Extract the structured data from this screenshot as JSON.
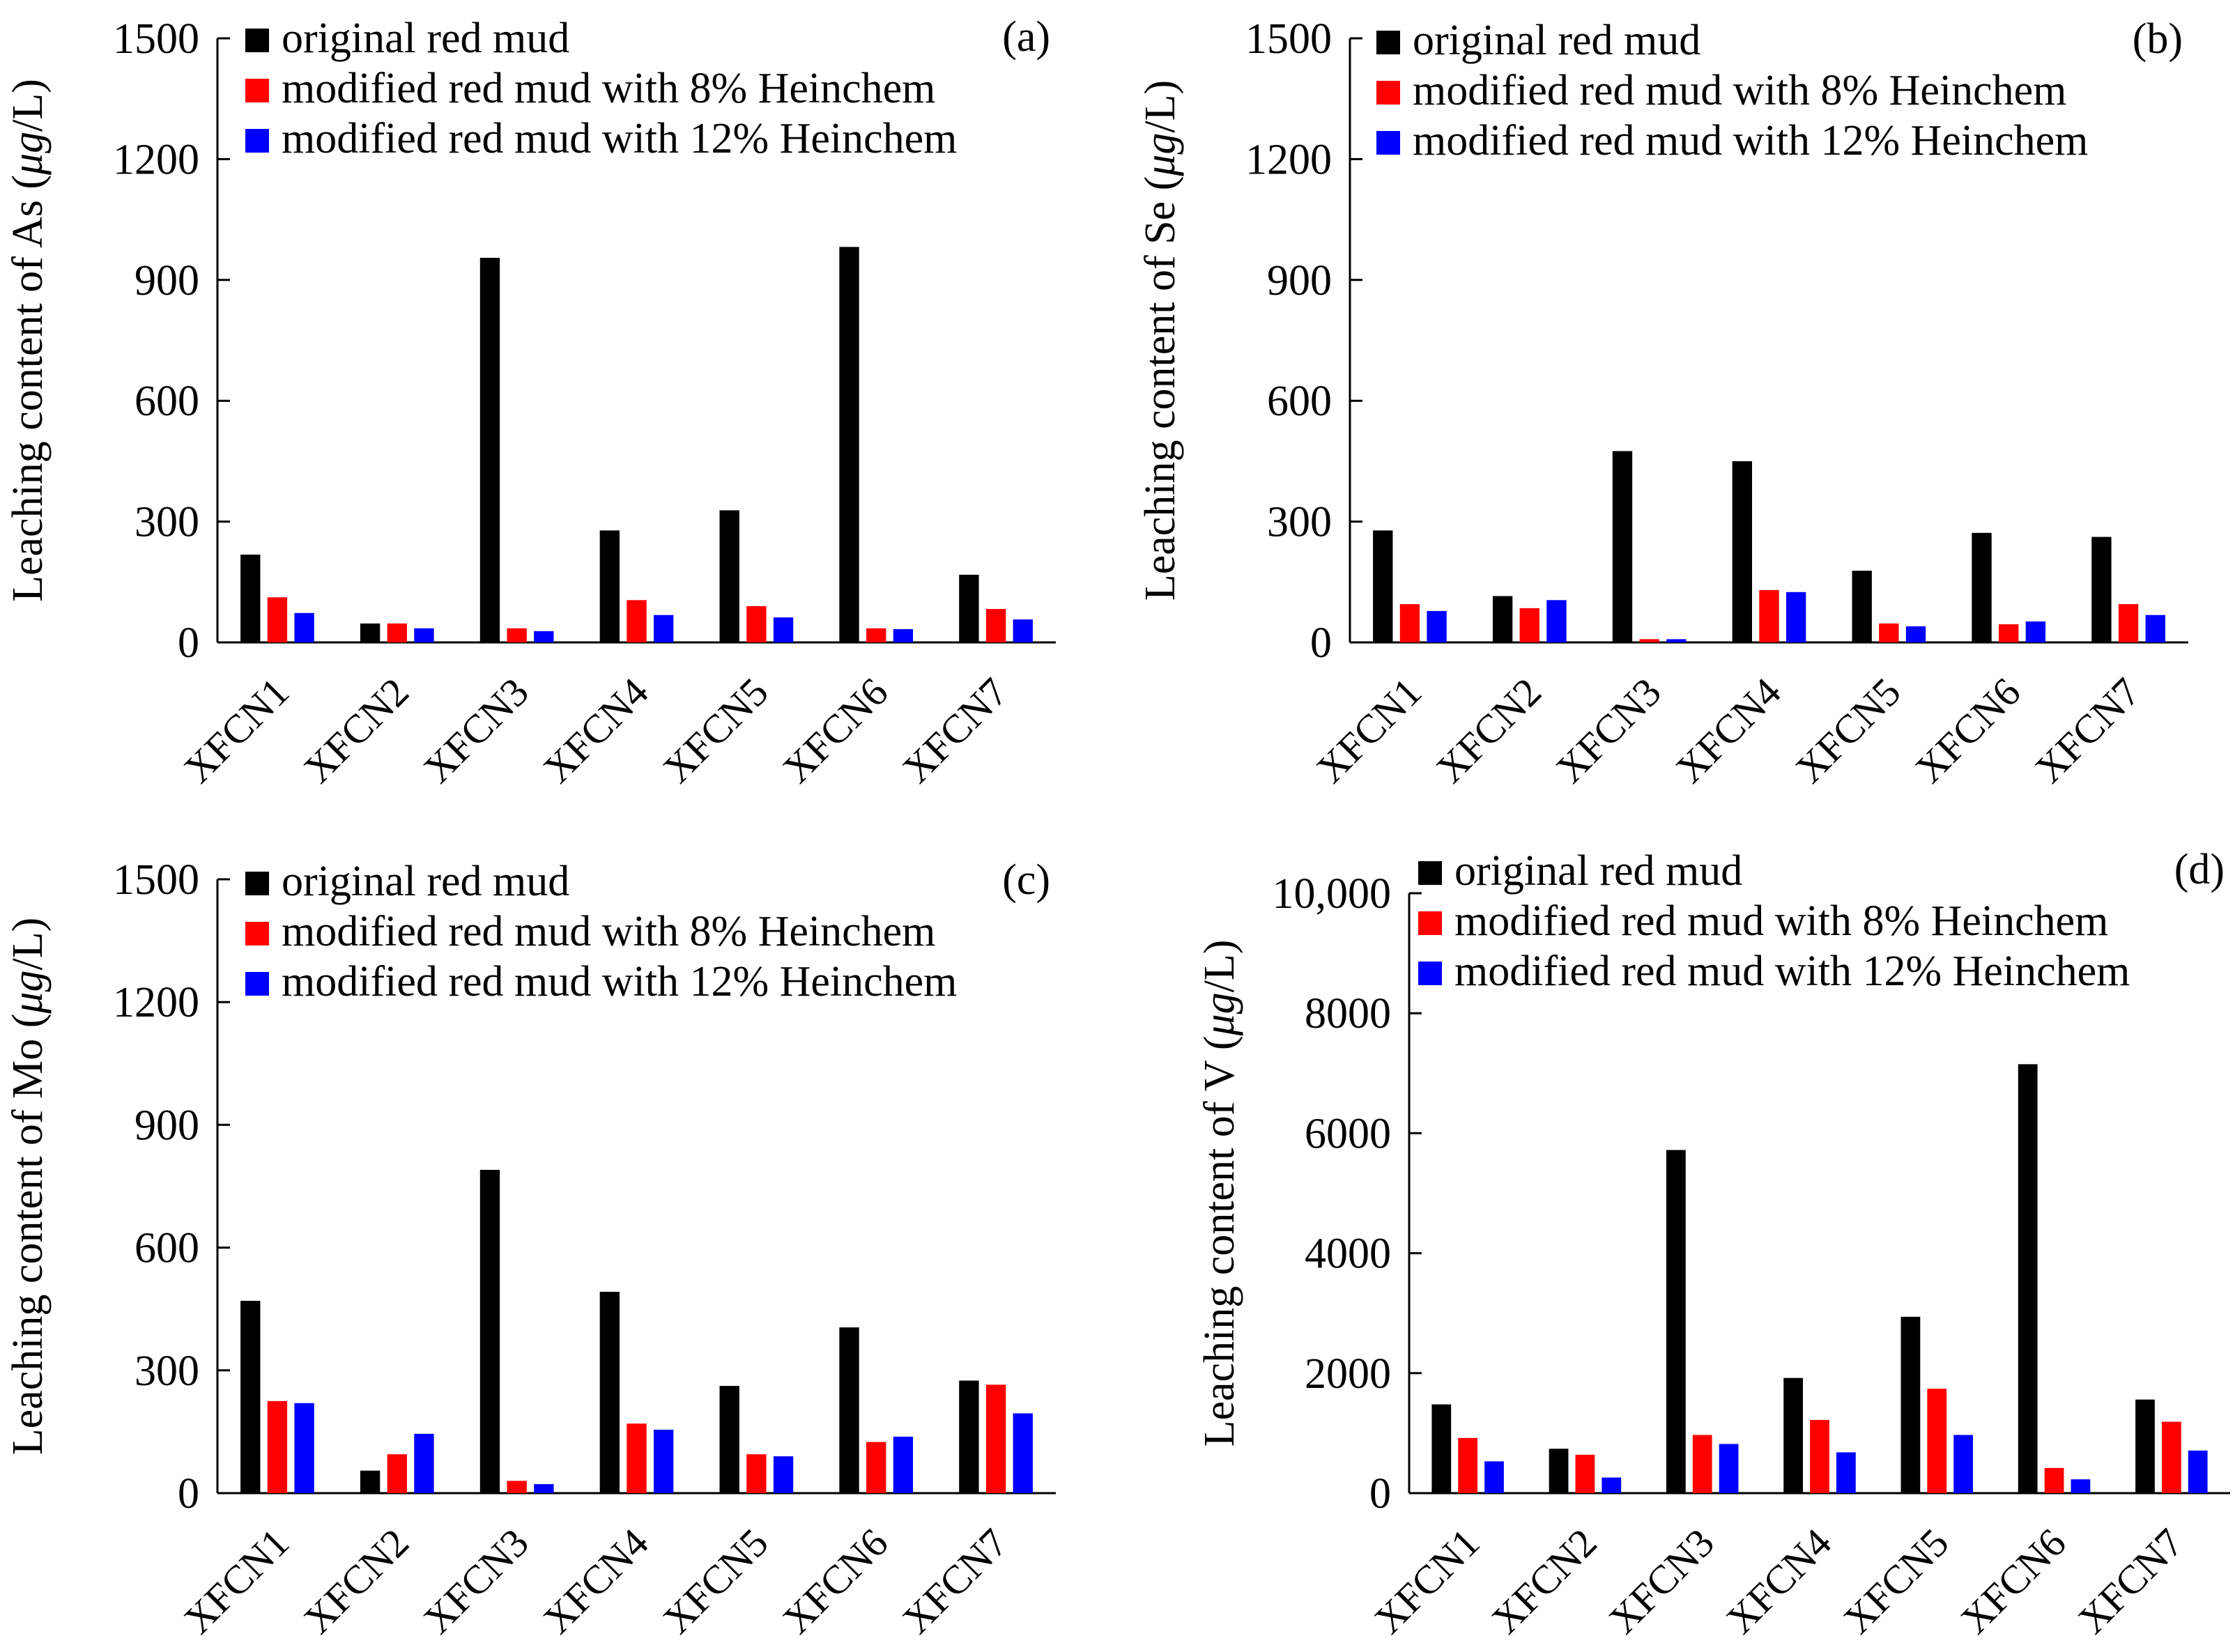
{
  "figure": {
    "legend": [
      "original red mud",
      "modified red mud with 8% Heinchem",
      "modified red mud with 12% Heinchem"
    ]
  },
  "colors": {
    "original": "#000000",
    "h8": "#ff0000",
    "h12": "#0000ff"
  },
  "chart_data": [
    {
      "type": "bar",
      "panel": "(a)",
      "ylabel_prefix": "Leaching content of As (",
      "ylabel_mu": "μ",
      "ylabel_suffix": "g/L)",
      "ylim": [
        0,
        1500
      ],
      "yticks": [
        "0",
        "300",
        "600",
        "900",
        "1200",
        "1500"
      ],
      "ytick_values": [
        0,
        300,
        600,
        900,
        1200,
        1500
      ],
      "categories": [
        "XFCN1",
        "XFCN2",
        "XFCN3",
        "XFCN4",
        "XFCN5",
        "XFCN6",
        "XFCN7"
      ],
      "series": [
        {
          "name": "original red mud",
          "values": [
            218,
            47,
            955,
            278,
            328,
            982,
            168
          ]
        },
        {
          "name": "modified red mud with 8% Heinchem",
          "values": [
            112,
            47,
            35,
            105,
            90,
            35,
            83
          ]
        },
        {
          "name": "modified red mud with 12% Heinchem",
          "values": [
            73,
            35,
            28,
            68,
            62,
            33,
            57
          ]
        }
      ]
    },
    {
      "type": "bar",
      "panel": "(b)",
      "ylabel_prefix": "Leaching content of Se (",
      "ylabel_mu": "μ",
      "ylabel_suffix": "g/L)",
      "ylim": [
        0,
        1500
      ],
      "yticks": [
        "0",
        "300",
        "600",
        "900",
        "1200",
        "1500"
      ],
      "ytick_values": [
        0,
        300,
        600,
        900,
        1200,
        1500
      ],
      "categories": [
        "XFCN1",
        "XFCN2",
        "XFCN3",
        "XFCN4",
        "XFCN5",
        "XFCN6",
        "XFCN7"
      ],
      "series": [
        {
          "name": "original red mud",
          "values": [
            278,
            115,
            475,
            450,
            178,
            272,
            262
          ]
        },
        {
          "name": "modified red mud with 8% Heinchem",
          "values": [
            95,
            85,
            8,
            130,
            47,
            45,
            95
          ]
        },
        {
          "name": "modified red mud with 12% Heinchem",
          "values": [
            78,
            105,
            8,
            125,
            40,
            52,
            68
          ]
        }
      ]
    },
    {
      "type": "bar",
      "panel": "(c)",
      "ylabel_prefix": "Leaching content of Mo (",
      "ylabel_mu": "μ",
      "ylabel_suffix": "g/L)",
      "ylim": [
        0,
        1500
      ],
      "yticks": [
        "0",
        "300",
        "600",
        "900",
        "1200",
        "1500"
      ],
      "ytick_values": [
        0,
        300,
        600,
        900,
        1200,
        1500
      ],
      "categories": [
        "XFCN1",
        "XFCN2",
        "XFCN3",
        "XFCN4",
        "XFCN5",
        "XFCN6",
        "XFCN7"
      ],
      "series": [
        {
          "name": "original red mud",
          "values": [
            470,
            55,
            790,
            492,
            262,
            405,
            275
          ]
        },
        {
          "name": "modified red mud with 8% Heinchem",
          "values": [
            225,
            95,
            30,
            170,
            95,
            125,
            265
          ]
        },
        {
          "name": "modified red mud with 12% Heinchem",
          "values": [
            220,
            145,
            22,
            155,
            90,
            138,
            195
          ]
        }
      ]
    },
    {
      "type": "bar",
      "panel": "(d)",
      "ylabel_prefix": "Leaching content of V (",
      "ylabel_mu": "μ",
      "ylabel_suffix": "g/L)",
      "ylim": [
        0,
        10000
      ],
      "yticks": [
        "0",
        "2000",
        "4000",
        "6000",
        "8000",
        "10,000"
      ],
      "ytick_values": [
        0,
        2000,
        4000,
        6000,
        8000,
        10000
      ],
      "categories": [
        "XFCN1",
        "XFCN2",
        "XFCN3",
        "XFCN4",
        "XFCN5",
        "XFCN6",
        "XFCN7"
      ],
      "series": [
        {
          "name": "original red mud",
          "values": [
            1480,
            740,
            5720,
            1920,
            2940,
            7150,
            1560
          ]
        },
        {
          "name": "modified red mud with 8% Heinchem",
          "values": [
            920,
            640,
            970,
            1220,
            1740,
            420,
            1190
          ]
        },
        {
          "name": "modified red mud with 12% Heinchem",
          "values": [
            530,
            260,
            820,
            680,
            970,
            230,
            710
          ]
        }
      ]
    }
  ]
}
